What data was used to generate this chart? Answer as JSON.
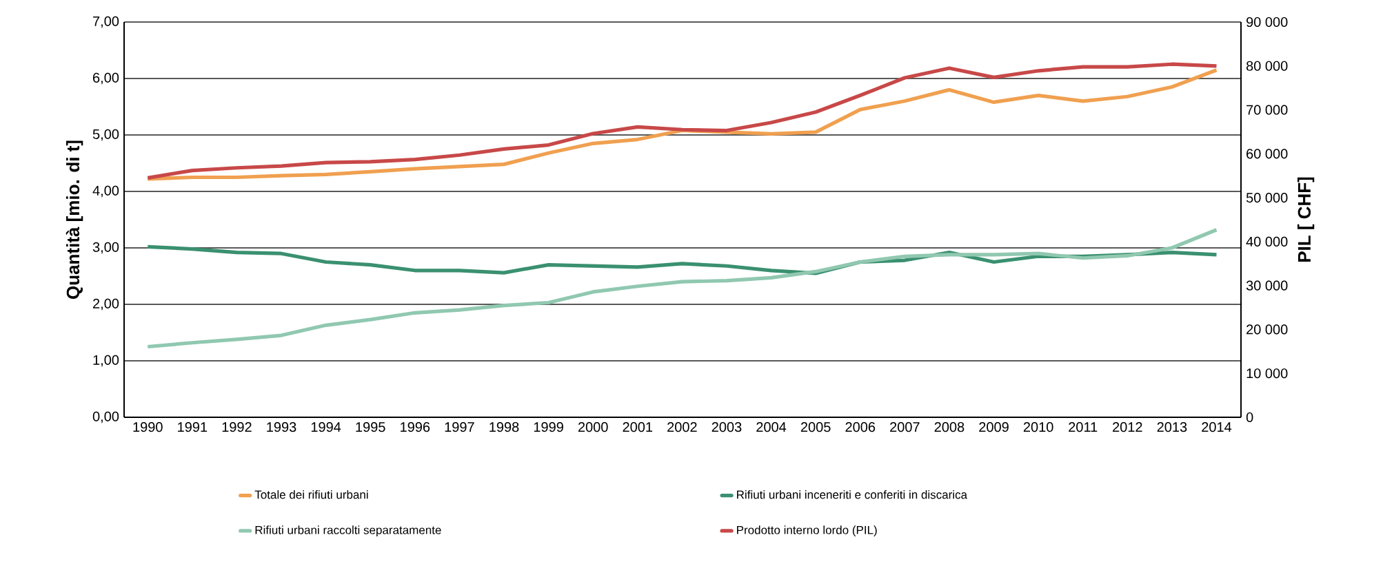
{
  "chart_data": {
    "type": "line",
    "ylabel": "Quantità [mio. di t]",
    "y2label": "PIL [ CHF]",
    "categories": [
      "1990",
      "1991",
      "1992",
      "1993",
      "1994",
      "1995",
      "1996",
      "1997",
      "1998",
      "1999",
      "2000",
      "2001",
      "2002",
      "2003",
      "2004",
      "2005",
      "2006",
      "2007",
      "2008",
      "2009",
      "2010",
      "2011",
      "2012",
      "2013",
      "2014"
    ],
    "series": [
      {
        "name": "Totale dei rifiuti urbani",
        "color": "#f0a050",
        "values": [
          4.22,
          4.25,
          4.25,
          4.28,
          4.3,
          4.35,
          4.4,
          4.44,
          4.48,
          4.68,
          4.85,
          4.92,
          5.08,
          5.05,
          5.02,
          5.05,
          5.45,
          5.6,
          5.8,
          5.58,
          5.7,
          5.6,
          5.68,
          5.85,
          6.15
        ]
      },
      {
        "name": "Rifiuti urbani inceneriti e conferiti in discarica",
        "color": "#3a9070",
        "values": [
          3.02,
          2.98,
          2.92,
          2.9,
          2.75,
          2.7,
          2.6,
          2.6,
          2.56,
          2.7,
          2.68,
          2.66,
          2.72,
          2.68,
          2.6,
          2.55,
          2.75,
          2.78,
          2.92,
          2.75,
          2.85,
          2.85,
          2.88,
          2.92,
          2.88
        ]
      },
      {
        "name": "Rifiuti urbani raccolti separatamente",
        "color": "#90c8b0",
        "values": [
          1.25,
          1.32,
          1.38,
          1.45,
          1.63,
          1.73,
          1.85,
          1.9,
          1.98,
          2.03,
          2.22,
          2.32,
          2.4,
          2.42,
          2.47,
          2.58,
          2.75,
          2.85,
          2.88,
          2.88,
          2.9,
          2.82,
          2.86,
          3.0,
          3.32
        ]
      },
      {
        "name": "Prodotto interno lordo (PIL)",
        "color": "#c84848",
        "axis": "y2",
        "values": [
          54500,
          56200,
          56800,
          57200,
          58000,
          58200,
          58700,
          59700,
          61100,
          62000,
          64600,
          66100,
          65500,
          65300,
          67100,
          69500,
          73300,
          77300,
          79500,
          77400,
          78900,
          79800,
          79800,
          80400,
          80000
        ]
      }
    ],
    "ylim": [
      0,
      7
    ],
    "yticks": [
      {
        "value": 0,
        "label": "0,00"
      },
      {
        "value": 1,
        "label": "1,00"
      },
      {
        "value": 2,
        "label": "2,00"
      },
      {
        "value": 3,
        "label": "3,00"
      },
      {
        "value": 4,
        "label": "4,00"
      },
      {
        "value": 5,
        "label": "5,00"
      },
      {
        "value": 6,
        "label": "6,00"
      },
      {
        "value": 7,
        "label": "7,00"
      }
    ],
    "y2lim": [
      0,
      90000
    ],
    "y2ticks": [
      0,
      {
        "value": 10000,
        "label": "10 000"
      },
      {
        "value": 20000,
        "label": "20 000"
      },
      {
        "value": 30000,
        "label": "30 000"
      },
      {
        "value": 40000,
        "label": "40 000"
      },
      {
        "value": 50000,
        "label": "50 000"
      },
      {
        "value": 60000,
        "label": "60 000"
      },
      {
        "value": 70000,
        "label": "70 000"
      },
      {
        "value": 80000,
        "label": "80 000"
      },
      {
        "value": 90000,
        "label": "90 000"
      }
    ],
    "grid": "y",
    "legend": "bottom",
    "line_style": "solid"
  }
}
